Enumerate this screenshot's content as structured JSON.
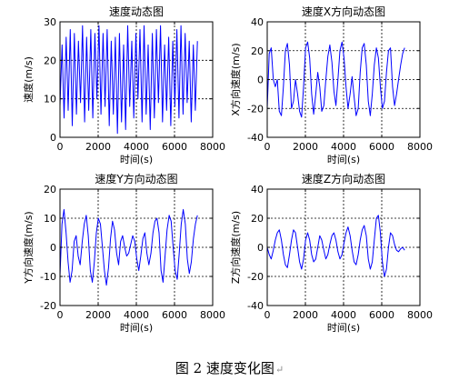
{
  "figure_caption": "图 2  速度变化图",
  "caption_mark": "↵",
  "colors": {
    "line": "#0000ff",
    "axes": "#000000",
    "grid": "#000000",
    "background": "#ffffff"
  },
  "chart_data": [
    {
      "type": "line",
      "title": "速度动态图",
      "xlabel": "时间(s)",
      "ylabel": "速度(m/s)",
      "xlim": [
        0,
        8000
      ],
      "ylim": [
        0,
        30
      ],
      "xticks": [
        0,
        2000,
        4000,
        6000,
        8000
      ],
      "yticks": [
        0,
        10,
        20,
        30
      ],
      "grid": true,
      "x_end": 7200,
      "series": [
        {
          "values": [
            8,
            24,
            5,
            26,
            7,
            28,
            3,
            27,
            6,
            25,
            9,
            29,
            4,
            26,
            7,
            28,
            5,
            27,
            10,
            29,
            6,
            27,
            8,
            28,
            3,
            25,
            6,
            26,
            1,
            27,
            4,
            24,
            2,
            29,
            8,
            25,
            5,
            27,
            10,
            28,
            4,
            29,
            6,
            24,
            2,
            27,
            5,
            28,
            9,
            29,
            4,
            24,
            7,
            26,
            3,
            25,
            8,
            28,
            5,
            29,
            6,
            27,
            9,
            25,
            4,
            24,
            7,
            25
          ]
        }
      ]
    },
    {
      "type": "line",
      "title": "速度X方向动态图",
      "xlabel": "时间(s)",
      "ylabel": "X方向速度(m/s)",
      "xlim": [
        0,
        8000
      ],
      "ylim": [
        -40,
        40
      ],
      "xticks": [
        0,
        2000,
        4000,
        6000,
        8000
      ],
      "yticks": [
        -40,
        -20,
        0,
        20,
        40
      ],
      "grid": true,
      "x_end": 7200,
      "series": [
        {
          "values": [
            -20,
            18,
            22,
            0,
            -5,
            0,
            -22,
            -25,
            -5,
            20,
            25,
            10,
            -20,
            -15,
            0,
            -10,
            -22,
            -26,
            -5,
            22,
            26,
            15,
            -10,
            -24,
            -10,
            5,
            -5,
            -22,
            -18,
            0,
            16,
            24,
            12,
            -8,
            -18,
            0,
            20,
            26,
            15,
            -5,
            -20,
            -10,
            2,
            -12,
            -25,
            -20,
            5,
            22,
            25,
            10,
            -15,
            -25,
            -10,
            10,
            22,
            15,
            -5,
            -20,
            -15,
            5,
            20,
            22,
            -5,
            -18,
            -10,
            0,
            10,
            18,
            22
          ]
        }
      ]
    },
    {
      "type": "line",
      "title": "速度Y方向动态图",
      "xlabel": "时间(s)",
      "ylabel": "Y方向速度(m/s)",
      "xlim": [
        0,
        8000
      ],
      "ylim": [
        -20,
        20
      ],
      "xticks": [
        0,
        2000,
        4000,
        6000,
        8000
      ],
      "yticks": [
        -20,
        -10,
        0,
        10,
        20
      ],
      "grid": true,
      "x_end": 7200,
      "series": [
        {
          "values": [
            -10,
            8,
            13,
            5,
            -5,
            -12,
            -8,
            2,
            4,
            -3,
            -6,
            2,
            8,
            11,
            4,
            -8,
            -12,
            -5,
            5,
            10,
            8,
            0,
            -8,
            -13,
            -7,
            3,
            9,
            6,
            -2,
            -6,
            2,
            4,
            0,
            -3,
            -2,
            1,
            4,
            2,
            -4,
            -8,
            -3,
            3,
            5,
            -2,
            -6,
            -2,
            5,
            9,
            10,
            5,
            -8,
            -12,
            -3,
            6,
            11,
            9,
            0,
            -8,
            -11,
            -2,
            8,
            13,
            8,
            -4,
            -9,
            -5,
            3,
            8,
            11
          ]
        }
      ]
    },
    {
      "type": "line",
      "title": "速度Z方向动态图",
      "xlabel": "时间(s)",
      "ylabel": "Z方向速度(m/s)",
      "xlim": [
        0,
        8000
      ],
      "ylim": [
        -40,
        40
      ],
      "xticks": [
        0,
        2000,
        4000,
        6000,
        8000
      ],
      "yticks": [
        -40,
        -20,
        0,
        20,
        40
      ],
      "grid": true,
      "x_end": 7200,
      "series": [
        {
          "values": [
            0,
            -5,
            -8,
            -2,
            5,
            10,
            12,
            5,
            -5,
            -12,
            -14,
            -5,
            5,
            12,
            10,
            0,
            -10,
            -15,
            -8,
            5,
            10,
            5,
            -5,
            -10,
            -8,
            0,
            8,
            5,
            -2,
            -8,
            -5,
            2,
            8,
            10,
            5,
            -3,
            -8,
            -5,
            3,
            10,
            14,
            8,
            -2,
            -10,
            -12,
            -5,
            5,
            12,
            15,
            8,
            -8,
            -15,
            -10,
            5,
            20,
            22,
            10,
            -10,
            -20,
            -15,
            0,
            10,
            8,
            2,
            -2,
            -3,
            -1,
            0,
            -2
          ]
        }
      ]
    }
  ]
}
